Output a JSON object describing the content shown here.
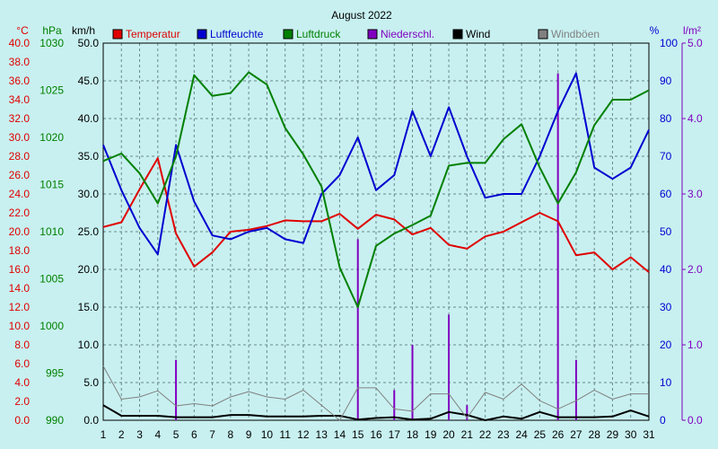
{
  "chart_data": {
    "type": "line",
    "title": "August 2022",
    "x": [
      1,
      2,
      3,
      4,
      5,
      6,
      7,
      8,
      9,
      10,
      11,
      12,
      13,
      14,
      15,
      16,
      17,
      18,
      19,
      20,
      21,
      22,
      23,
      24,
      25,
      26,
      27,
      28,
      29,
      30,
      31
    ],
    "x_ticks": [
      "1",
      "2",
      "3",
      "4",
      "5",
      "6",
      "7",
      "8",
      "9",
      "10",
      "11",
      "12",
      "13",
      "14",
      "15",
      "16",
      "17",
      "18",
      "19",
      "20",
      "21",
      "22",
      "23",
      "24",
      "25",
      "26",
      "27",
      "28",
      "29",
      "30",
      "31"
    ],
    "axes": {
      "temp": {
        "unit": "°C",
        "min": 0,
        "max": 40,
        "ticks": [
          "0.0",
          "2.0",
          "4.0",
          "6.0",
          "8.0",
          "10.0",
          "12.0",
          "14.0",
          "16.0",
          "18.0",
          "20.0",
          "22.0",
          "24.0",
          "26.0",
          "28.0",
          "30.0",
          "32.0",
          "34.0",
          "36.0",
          "38.0",
          "40.0"
        ],
        "color": "#e00000"
      },
      "pressure": {
        "unit": "hPa",
        "min": 990,
        "max": 1030,
        "ticks": [
          "990",
          "995",
          "1000",
          "1005",
          "1010",
          "1015",
          "1020",
          "1025",
          "1030"
        ],
        "color": "#008000"
      },
      "wind": {
        "unit": "km/h",
        "min": 0,
        "max": 50,
        "ticks": [
          "0.0",
          "5.0",
          "10.0",
          "15.0",
          "20.0",
          "25.0",
          "30.0",
          "35.0",
          "40.0",
          "45.0",
          "50.0"
        ],
        "color": "#000000"
      },
      "humidity": {
        "unit": "%",
        "min": 0,
        "max": 100,
        "ticks": [
          "0",
          "10",
          "20",
          "30",
          "40",
          "50",
          "60",
          "70",
          "80",
          "90",
          "100"
        ],
        "color": "#0000d0"
      },
      "rain": {
        "unit": "l/m²",
        "min": 0,
        "max": 5,
        "ticks": [
          "0.0",
          "1.0",
          "2.0",
          "3.0",
          "4.0",
          "5.0"
        ],
        "color": "#8000c0"
      }
    },
    "grid": true,
    "legend_position": "top",
    "series": [
      {
        "name": "Temperatur",
        "axis": "temp",
        "kind": "line",
        "color": "#e00000",
        "values": [
          20.5,
          21.0,
          24.5,
          27.8,
          19.8,
          16.3,
          17.8,
          20.0,
          20.2,
          20.6,
          21.2,
          21.1,
          21.1,
          21.9,
          20.3,
          21.8,
          21.3,
          19.7,
          20.4,
          18.6,
          18.2,
          19.5,
          20.0,
          21.0,
          22.0,
          21.1,
          17.5,
          17.8,
          16.0,
          17.3,
          15.7
        ]
      },
      {
        "name": "Luftfeuchte",
        "axis": "humidity",
        "kind": "line",
        "color": "#0000d0",
        "values": [
          73,
          61,
          51,
          44,
          73,
          58,
          49,
          48,
          50,
          51,
          48,
          47,
          60,
          65,
          75,
          61,
          65,
          82,
          70,
          83,
          70,
          59,
          60,
          60,
          70,
          82,
          92,
          67,
          64,
          67,
          77
        ]
      },
      {
        "name": "Luftdruck",
        "axis": "pressure",
        "kind": "line",
        "color": "#008000",
        "values": [
          1017.5,
          1018.3,
          1016.2,
          1013.0,
          1018.0,
          1026.6,
          1024.4,
          1024.7,
          1026.9,
          1025.6,
          1021.0,
          1018.2,
          1014.8,
          1006.2,
          1002.0,
          1008.5,
          1009.8,
          1010.7,
          1011.7,
          1017.0,
          1017.3,
          1017.3,
          1019.8,
          1021.4,
          1016.8,
          1013.0,
          1016.3,
          1021.3,
          1024.0,
          1024.0,
          1025.0
        ]
      },
      {
        "name": "Niederschl.",
        "axis": "rain",
        "kind": "bar",
        "color": "#8000c0",
        "values": [
          0,
          0,
          0,
          0,
          0.8,
          0,
          0,
          0,
          0,
          0,
          0,
          0,
          0,
          0,
          2.4,
          0,
          0.4,
          1.0,
          0,
          1.4,
          0.2,
          0,
          0,
          0,
          0,
          4.6,
          0.8,
          0,
          0,
          0,
          0
        ]
      },
      {
        "name": "Wind",
        "axis": "wind",
        "kind": "line",
        "color": "#000000",
        "values": [
          2.0,
          0.6,
          0.6,
          0.6,
          0.4,
          0.4,
          0.4,
          0.7,
          0.7,
          0.5,
          0.5,
          0.5,
          0.6,
          0.6,
          0.1,
          0.3,
          0.4,
          0.1,
          0.2,
          1.1,
          0.7,
          0.0,
          0.5,
          0.2,
          1.1,
          0.4,
          0.4,
          0.4,
          0.5,
          1.3,
          0.5
        ]
      },
      {
        "name": "Windböen",
        "axis": "wind",
        "kind": "line",
        "color": "#808080",
        "values": [
          7.2,
          2.8,
          3.1,
          3.9,
          1.9,
          2.2,
          1.9,
          3.1,
          3.8,
          3.1,
          2.8,
          4.0,
          2.0,
          0.0,
          4.3,
          4.3,
          1.5,
          1.2,
          3.5,
          3.5,
          0.3,
          3.7,
          2.8,
          4.8,
          2.6,
          1.5,
          2.6,
          4.0,
          2.8,
          3.5,
          3.5
        ]
      }
    ]
  }
}
